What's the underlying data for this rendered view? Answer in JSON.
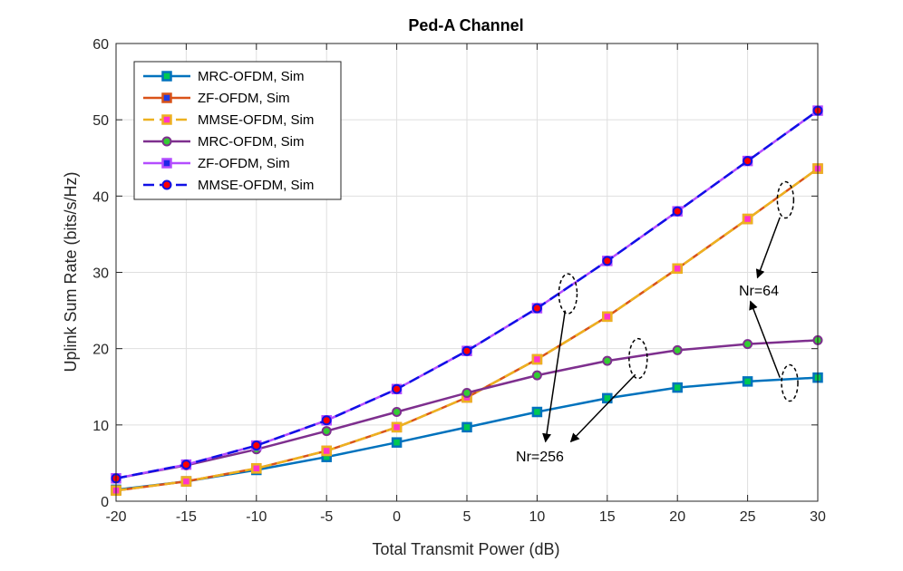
{
  "chart_data": {
    "type": "line",
    "title": "Ped-A Channel",
    "xlabel": "Total Transmit Power (dB)",
    "ylabel": "Uplink Sum Rate (bits/s/Hz)",
    "xlim": [
      -20,
      30
    ],
    "ylim": [
      0,
      60
    ],
    "xticks": [
      -20,
      -15,
      -10,
      -5,
      0,
      5,
      10,
      15,
      20,
      25,
      30
    ],
    "yticks": [
      0,
      10,
      20,
      30,
      40,
      50,
      60
    ],
    "grid": true,
    "legend_position": "top-left",
    "x": [
      -20,
      -15,
      -10,
      -5,
      0,
      5,
      10,
      15,
      20,
      25,
      30
    ],
    "series": [
      {
        "name": "MRC-OFDM, Sim",
        "color": "#0072BD",
        "marker_face": "#00C853",
        "marker_edge": "#0072BD",
        "marker": "square",
        "dash": "solid",
        "values": [
          1.5,
          2.6,
          4.1,
          5.8,
          7.7,
          9.7,
          11.7,
          13.5,
          14.9,
          15.7,
          16.2
        ]
      },
      {
        "name": "ZF-OFDM, Sim",
        "color": "#D95319",
        "marker_face": "#1E3CE6",
        "marker_edge": "#D95319",
        "marker": "square",
        "dash": "solid",
        "values": [
          1.4,
          2.6,
          4.3,
          6.6,
          9.7,
          13.6,
          18.6,
          24.2,
          30.5,
          37.0,
          43.6
        ]
      },
      {
        "name": "MMSE-OFDM, Sim",
        "color": "#EDB120",
        "marker_face": "#FF33CC",
        "marker_edge": "#EDB120",
        "marker": "square",
        "dash": "dashed",
        "values": [
          1.4,
          2.6,
          4.3,
          6.6,
          9.7,
          13.6,
          18.6,
          24.2,
          30.5,
          37.0,
          43.6
        ]
      },
      {
        "name": "MRC-OFDM, Sim",
        "color": "#7E2F8E",
        "marker_face": "#33CC33",
        "marker_edge": "#7E2F8E",
        "marker": "circle",
        "dash": "solid",
        "values": [
          3.0,
          4.7,
          6.8,
          9.2,
          11.7,
          14.2,
          16.5,
          18.4,
          19.8,
          20.6,
          21.1
        ]
      },
      {
        "name": "ZF-OFDM, Sim",
        "color": "#B44DFF",
        "marker_face": "#1E28E6",
        "marker_edge": "#B44DFF",
        "marker": "square",
        "dash": "solid",
        "values": [
          3.0,
          4.8,
          7.3,
          10.6,
          14.7,
          19.7,
          25.3,
          31.5,
          38.0,
          44.6,
          51.2
        ]
      },
      {
        "name": "MMSE-OFDM, Sim",
        "color": "#1010E6",
        "marker_face": "#FF0000",
        "marker_edge": "#1010E6",
        "marker": "circle",
        "dash": "dashed",
        "values": [
          3.0,
          4.8,
          7.3,
          10.6,
          14.7,
          19.7,
          25.3,
          31.5,
          38.0,
          44.6,
          51.2
        ]
      }
    ],
    "annotations": [
      {
        "text": "Nr=256"
      },
      {
        "text": "Nr=64"
      }
    ]
  }
}
